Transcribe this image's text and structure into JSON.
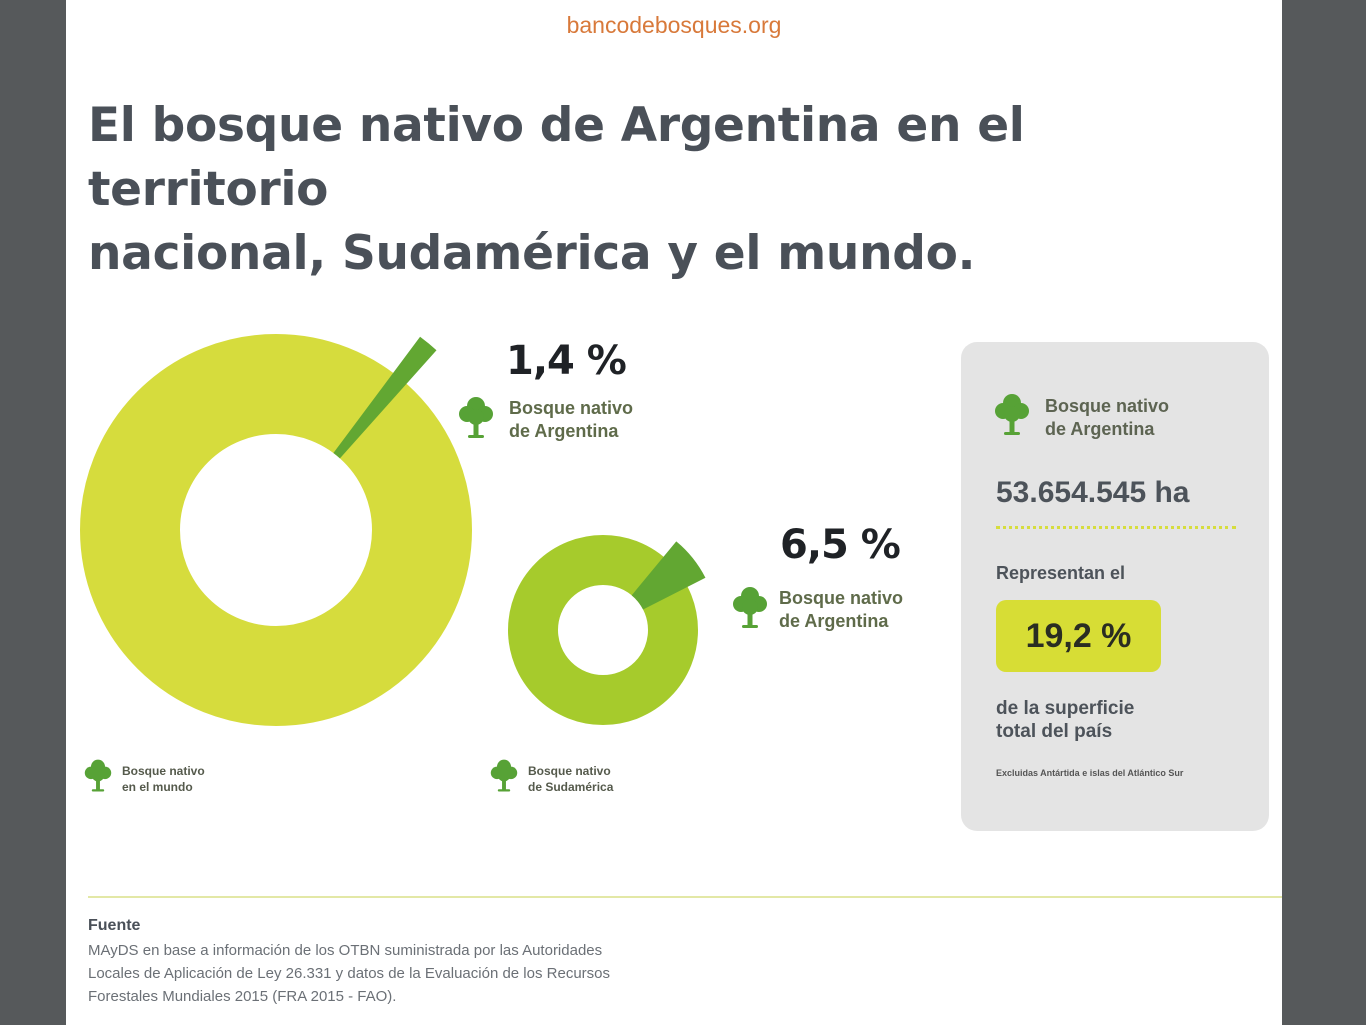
{
  "site": "bancodebosques.org",
  "title": {
    "line1": "El bosque nativo de Argentina en el territorio",
    "line2": "nacional, Sudamérica y el mundo."
  },
  "colors": {
    "world_ring": "#d6dc3d",
    "south_america_ring": "#a6cb2c",
    "argentina_slice": "#62a732",
    "tree": "#57a236",
    "badge": "#d7dd35",
    "site_link": "#d8793a"
  },
  "chart_data": [
    {
      "type": "pie",
      "variant": "donut",
      "slices": [
        {
          "label": "Bosque nativo de Argentina",
          "value": 1.4
        },
        {
          "label": "Bosque nativo en el mundo",
          "value": 98.6
        }
      ],
      "value_label": "1,4 %",
      "highlight_label": [
        "Bosque nativo",
        "de Argentina"
      ],
      "ring_label": [
        "Bosque nativo",
        "en el mundo"
      ]
    },
    {
      "type": "pie",
      "variant": "donut",
      "slices": [
        {
          "label": "Bosque nativo de Argentina",
          "value": 6.5
        },
        {
          "label": "Bosque nativo de Sudamérica",
          "value": 93.5
        }
      ],
      "value_label": "6,5 %",
      "highlight_label": [
        "Bosque nativo",
        "de Argentina"
      ],
      "ring_label": [
        "Bosque nativo",
        "de Sudamérica"
      ]
    }
  ],
  "panel": {
    "label": [
      "Bosque nativo",
      "de Argentina"
    ],
    "area": "53.654.545 ha",
    "represent": "Representan el",
    "percent": "19,2 %",
    "surface": [
      "de la superficie",
      "total del país"
    ],
    "note": "Excluidas Antártida e islas del Atlántico Sur"
  },
  "source": {
    "heading": "Fuente",
    "lines": [
      "MAyDS en base a información de los OTBN suministrada por las Autoridades",
      "Locales de Aplicación de Ley 26.331 y datos de la Evaluación de los Recursos",
      "Forestales Mundiales 2015 (FRA 2015 - FAO)."
    ]
  }
}
